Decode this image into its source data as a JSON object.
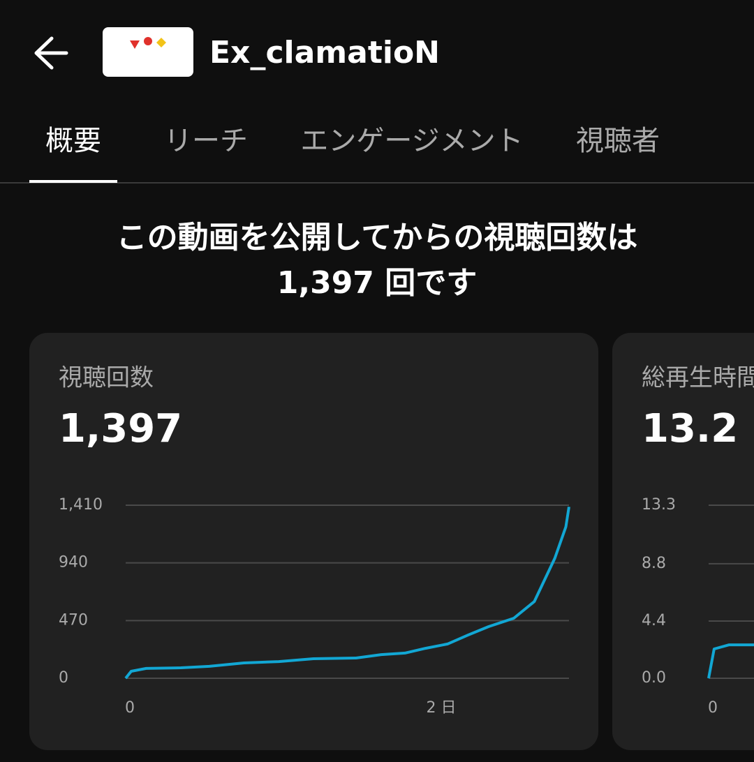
{
  "header": {
    "title": "Ex_clamatioN"
  },
  "tabs": {
    "items": [
      "概要",
      "リーチ",
      "エンゲージメント",
      "視聴者"
    ],
    "active": 0
  },
  "headline": {
    "line1": "この動画を公開してからの視聴回数は",
    "line2": "1,397 回です"
  },
  "cards": [
    {
      "title": "視聴回数",
      "value": "1,397",
      "chart": {
        "type": "line",
        "color": "#12a7d4",
        "grid": true,
        "xlim": [
          0,
          2.81
        ],
        "xticks": [
          0,
          {
            "value": 2,
            "label": "2 日"
          }
        ],
        "ylim": [
          0,
          1410
        ],
        "yticks": [
          0,
          470,
          940,
          {
            "value": 1410,
            "label": "1,410"
          }
        ],
        "x": [
          0,
          0.035,
          0.13,
          0.35,
          0.53,
          0.75,
          0.97,
          1.19,
          1.46,
          1.62,
          1.77,
          1.9,
          2.04,
          2.17,
          2.3,
          2.46,
          2.59,
          2.72,
          2.79,
          2.81
        ],
        "values": [
          0,
          57,
          80,
          85,
          97,
          125,
          136,
          159,
          165,
          193,
          205,
          244,
          279,
          352,
          421,
          489,
          625,
          978,
          1234,
          1397
        ]
      }
    },
    {
      "title": "総再生時間",
      "value": "13.2",
      "chart": {
        "type": "line",
        "color": "#12a7d4",
        "grid": true,
        "xlim": [
          0,
          2.81
        ],
        "xticks": [
          0
        ],
        "ylim": [
          0,
          13.3
        ],
        "yticks": [
          {
            "value": 0,
            "label": "0.0"
          },
          4.4,
          8.8,
          13.3
        ],
        "x": [
          0,
          0.035,
          0.13,
          0.35
        ],
        "values": [
          0,
          2.25,
          2.57,
          2.57
        ]
      }
    }
  ]
}
